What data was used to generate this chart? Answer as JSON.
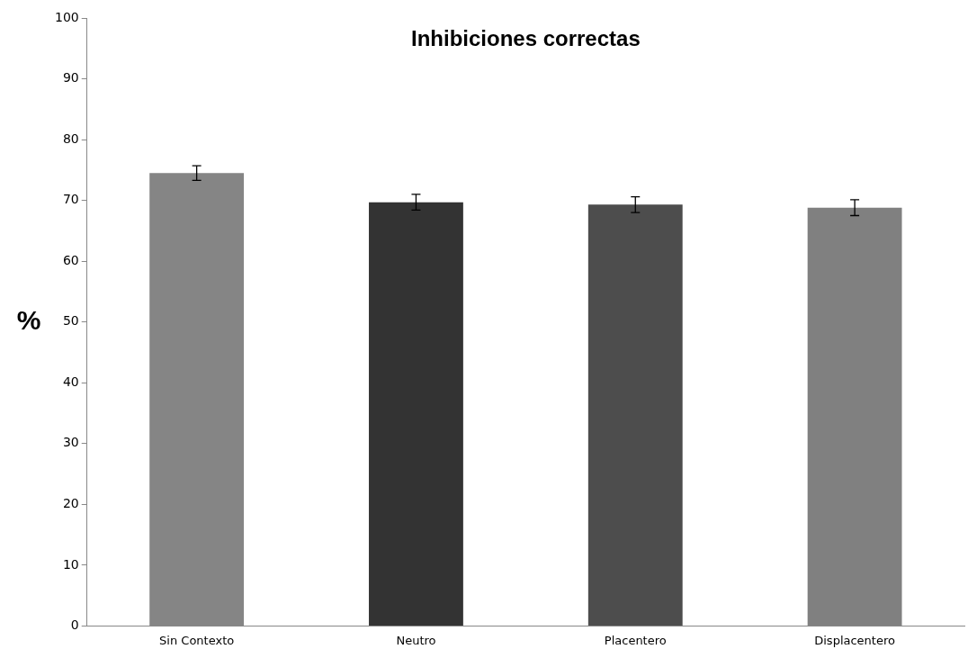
{
  "chart_data": {
    "type": "bar",
    "title": "Inhibiciones correctas",
    "ylabel": "%",
    "categories": [
      "Sin Contexto",
      "Neutro",
      "Placentero",
      "Displacentero"
    ],
    "values": [
      74.5,
      69.7,
      69.3,
      68.8
    ],
    "colors": [
      "#858585",
      "#333333",
      "#4d4d4d",
      "#808080"
    ],
    "errors": [
      1.2,
      1.3,
      1.3,
      1.3
    ],
    "ylim": [
      0,
      100
    ],
    "yticks": [
      0,
      10,
      20,
      30,
      40,
      50,
      60,
      70,
      80,
      90,
      100
    ],
    "grid": false,
    "legend": false
  }
}
